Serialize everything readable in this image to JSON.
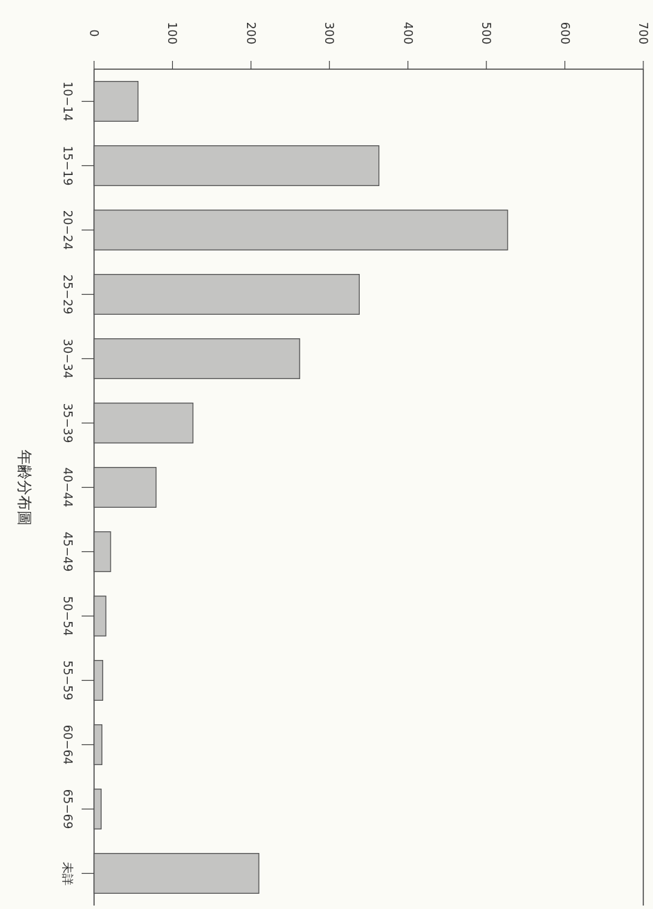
{
  "chart_data": {
    "type": "bar",
    "orientation": "horizontal",
    "title": "年齢分布圖",
    "categories": [
      "10−14",
      "15−19",
      "20−24",
      "25−29",
      "30−34",
      "35−39",
      "40−44",
      "45−49",
      "50−54",
      "55−59",
      "60−64",
      "65−69",
      "未詳"
    ],
    "values": [
      56,
      363,
      527,
      338,
      262,
      126,
      79,
      21,
      15,
      11,
      10,
      9,
      210
    ],
    "color": "#c4c4c2",
    "xlim": [
      0,
      700
    ],
    "xticks": [
      0,
      100,
      200,
      300,
      400,
      500,
      600,
      700
    ],
    "grid": false
  }
}
